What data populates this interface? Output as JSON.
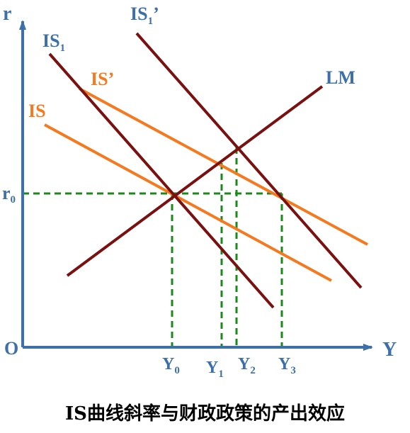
{
  "colors": {
    "axis": "#3d6fa8",
    "dark_curve": "#7a1010",
    "orange_curve": "#f57a1f",
    "guide": "#1a8a1a",
    "caption": "#000000"
  },
  "axes": {
    "y_label": "r",
    "x_label": "Y",
    "origin_label": "O",
    "r0_main": "r",
    "r0_sub": "0"
  },
  "curves": {
    "is1_prime": {
      "main": "IS",
      "sub": "1",
      "suffix": "’"
    },
    "is1": {
      "main": "IS",
      "sub": "1"
    },
    "is_prime": {
      "main": "IS’"
    },
    "is": {
      "main": "IS"
    },
    "lm": {
      "main": "LM"
    }
  },
  "x_ticks": [
    {
      "main": "Y",
      "sub": "0"
    },
    {
      "main": "Y",
      "sub": "1"
    },
    {
      "main": "Y",
      "sub": "2"
    },
    {
      "main": "Y",
      "sub": "3"
    }
  ],
  "caption": "IS曲线斜率与财政政策的产出效应"
}
